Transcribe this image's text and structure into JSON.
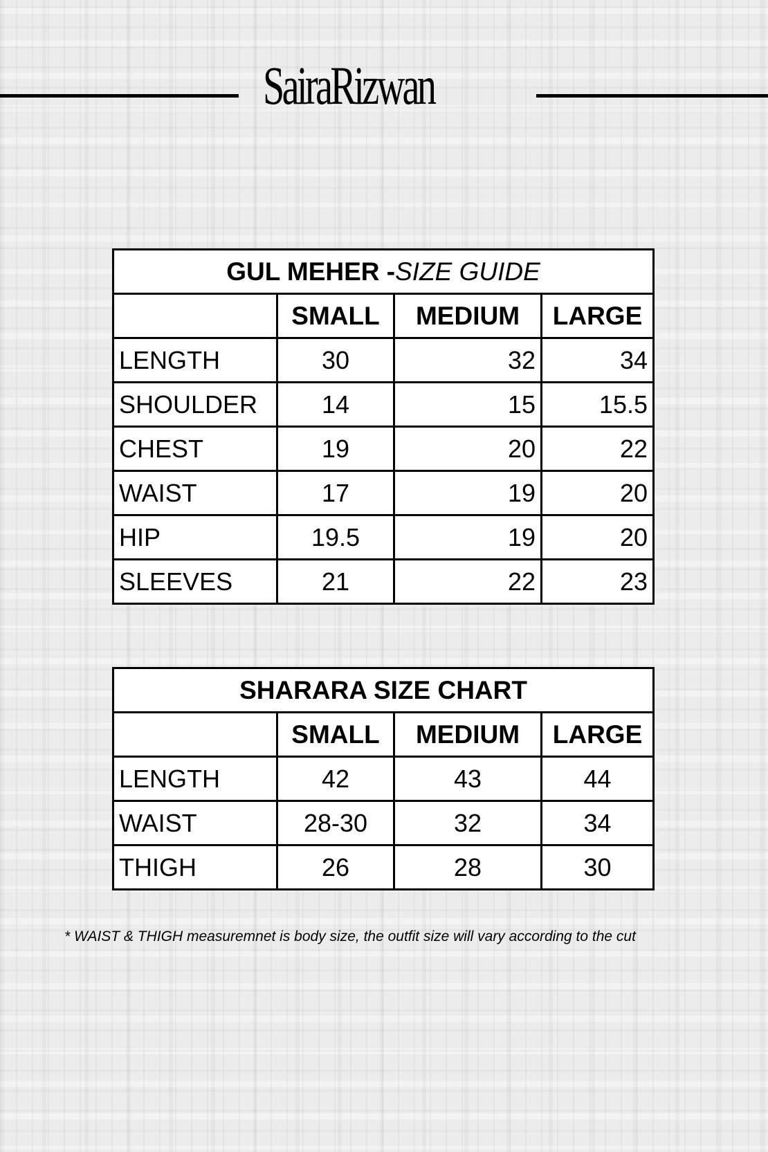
{
  "brand": {
    "logo_text": "SairaRizwan"
  },
  "size_guide": {
    "title_bold": "GUL MEHER -",
    "title_italic": "SIZE GUIDE",
    "columns": [
      "",
      "SMALL",
      "MEDIUM",
      "LARGE"
    ],
    "rows": [
      {
        "label": "LENGTH",
        "small": "30",
        "medium": "32",
        "large": "34"
      },
      {
        "label": "SHOULDER",
        "small": "14",
        "medium": "15",
        "large": "15.5"
      },
      {
        "label": "CHEST",
        "small": "19",
        "medium": "20",
        "large": "22"
      },
      {
        "label": "WAIST",
        "small": "17",
        "medium": "19",
        "large": "20"
      },
      {
        "label": "HIP",
        "small": "19.5",
        "medium": "19",
        "large": "20"
      },
      {
        "label": "SLEEVES",
        "small": "21",
        "medium": "22",
        "large": "23"
      }
    ]
  },
  "sharara_chart": {
    "title": "SHARARA SIZE CHART",
    "columns": [
      "",
      "SMALL",
      "MEDIUM",
      "LARGE"
    ],
    "rows": [
      {
        "label": "LENGTH",
        "small": "42",
        "medium": "43",
        "large": "44"
      },
      {
        "label": "WAIST",
        "small": "28-30",
        "medium": "32",
        "large": "34"
      },
      {
        "label": "THIGH",
        "small": "26",
        "medium": "28",
        "large": "30"
      }
    ]
  },
  "footnote": "* WAIST & THIGH measuremnet is body size, the outfit size will vary according to the cut"
}
